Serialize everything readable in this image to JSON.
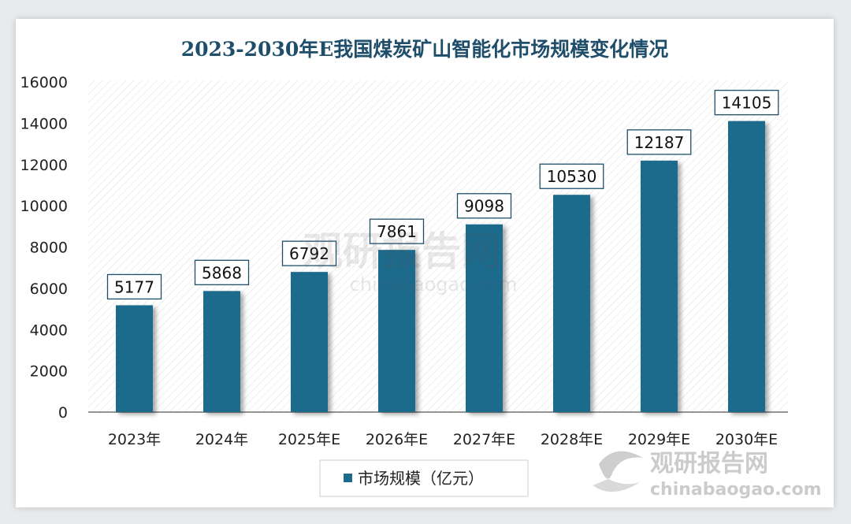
{
  "chart_data": {
    "type": "bar",
    "title": "2023-2030年E我国煤炭矿山智能化市场规模变化情况",
    "categories": [
      "2023年",
      "2024年",
      "2025年E",
      "2026年E",
      "2027年E",
      "2028年E",
      "2029年E",
      "2030年E"
    ],
    "series": [
      {
        "name": "市场规模（亿元）",
        "values": [
          5177,
          5868,
          6792,
          7861,
          9098,
          10530,
          12187,
          14105
        ]
      }
    ],
    "xlabel": "",
    "ylabel": "",
    "ylim": [
      0,
      16000
    ],
    "yticks": [
      "0",
      "2000",
      "4000",
      "6000",
      "8000",
      "10000",
      "12000",
      "14000",
      "16000"
    ],
    "grid": false,
    "legend_position": "bottom",
    "colors": {
      "bar": "#1d6a8c",
      "title": "#1f4e6b",
      "label_border": "#1d4f6b"
    }
  },
  "watermark": {
    "cn": "观研报告网",
    "en": "chinabaogao.com"
  }
}
